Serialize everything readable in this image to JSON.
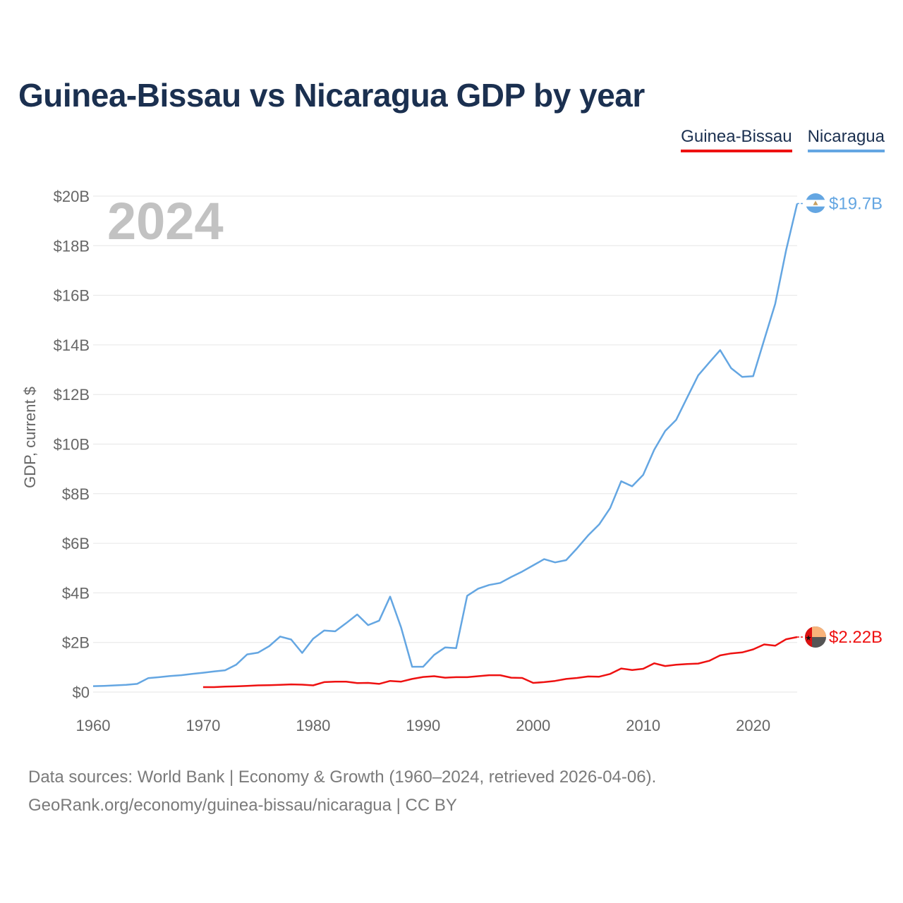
{
  "title": "Guinea-Bissau vs Nicaragua GDP by year",
  "legend": [
    {
      "label": "Guinea-Bissau",
      "color": "#ee1111"
    },
    {
      "label": "Nicaragua",
      "color": "#64a6e2"
    }
  ],
  "footer": {
    "line1": "Data sources: World Bank | Economy & Growth (1960–2024, retrieved 2026-04-06).",
    "line2": "GeoRank.org/economy/guinea-bissau/nicaragua | CC BY"
  },
  "chart_data": {
    "type": "line",
    "title": "Guinea-Bissau vs Nicaragua GDP by year",
    "xlabel": "",
    "ylabel": "GDP, current $",
    "year_label": "2024",
    "xlim": [
      1960,
      2024
    ],
    "ylim": [
      0,
      20
    ],
    "x_ticks": [
      1960,
      1970,
      1980,
      1990,
      2000,
      2010,
      2020
    ],
    "y_ticks": [
      0,
      2,
      4,
      6,
      8,
      10,
      12,
      14,
      16,
      18,
      20
    ],
    "y_tick_labels": [
      "$0",
      "$2B",
      "$4B",
      "$6B",
      "$8B",
      "$10B",
      "$12B",
      "$14B",
      "$16B",
      "$18B",
      "$20B"
    ],
    "grid": true,
    "series": [
      {
        "name": "Nicaragua",
        "color": "#64a6e2",
        "end_label": "$19.7B",
        "x": [
          1960,
          1961,
          1962,
          1963,
          1964,
          1965,
          1966,
          1967,
          1968,
          1969,
          1970,
          1971,
          1972,
          1973,
          1974,
          1975,
          1976,
          1977,
          1978,
          1979,
          1980,
          1981,
          1982,
          1983,
          1984,
          1985,
          1986,
          1987,
          1988,
          1989,
          1990,
          1991,
          1992,
          1993,
          1994,
          1995,
          1996,
          1997,
          1998,
          1999,
          2000,
          2001,
          2002,
          2003,
          2004,
          2005,
          2006,
          2007,
          2008,
          2009,
          2010,
          2011,
          2012,
          2013,
          2014,
          2015,
          2016,
          2017,
          2018,
          2019,
          2020,
          2021,
          2022,
          2023,
          2024
        ],
        "values": [
          0.24,
          0.25,
          0.27,
          0.29,
          0.33,
          0.56,
          0.6,
          0.65,
          0.68,
          0.73,
          0.78,
          0.83,
          0.88,
          1.1,
          1.52,
          1.59,
          1.85,
          2.24,
          2.12,
          1.58,
          2.15,
          2.48,
          2.45,
          2.78,
          3.13,
          2.7,
          2.88,
          3.85,
          2.6,
          1.02,
          1.02,
          1.5,
          1.8,
          1.77,
          3.88,
          4.17,
          4.32,
          4.4,
          4.64,
          4.86,
          5.11,
          5.36,
          5.23,
          5.32,
          5.8,
          6.32,
          6.76,
          7.42,
          8.5,
          8.3,
          8.76,
          9.77,
          10.53,
          10.98,
          11.88,
          12.77,
          13.29,
          13.79,
          13.06,
          12.71,
          12.74,
          14.2,
          15.65,
          17.83,
          19.7
        ]
      },
      {
        "name": "Guinea-Bissau",
        "color": "#ee1111",
        "end_label": "$2.22B",
        "x": [
          1970,
          1971,
          1972,
          1973,
          1974,
          1975,
          1976,
          1977,
          1978,
          1979,
          1980,
          1981,
          1982,
          1983,
          1984,
          1985,
          1986,
          1987,
          1988,
          1989,
          1990,
          1991,
          1992,
          1993,
          1994,
          1995,
          1996,
          1997,
          1998,
          1999,
          2000,
          2001,
          2002,
          2003,
          2004,
          2005,
          2006,
          2007,
          2008,
          2009,
          2010,
          2011,
          2012,
          2013,
          2014,
          2015,
          2016,
          2017,
          2018,
          2019,
          2020,
          2021,
          2022,
          2023,
          2024
        ],
        "values": [
          0.2,
          0.2,
          0.22,
          0.23,
          0.25,
          0.27,
          0.28,
          0.29,
          0.31,
          0.3,
          0.27,
          0.4,
          0.42,
          0.42,
          0.36,
          0.37,
          0.33,
          0.45,
          0.42,
          0.53,
          0.61,
          0.64,
          0.58,
          0.6,
          0.6,
          0.64,
          0.68,
          0.68,
          0.58,
          0.57,
          0.37,
          0.4,
          0.45,
          0.53,
          0.57,
          0.63,
          0.62,
          0.73,
          0.95,
          0.89,
          0.94,
          1.16,
          1.05,
          1.1,
          1.13,
          1.15,
          1.26,
          1.48,
          1.56,
          1.6,
          1.72,
          1.92,
          1.87,
          2.13,
          2.22
        ]
      }
    ]
  }
}
